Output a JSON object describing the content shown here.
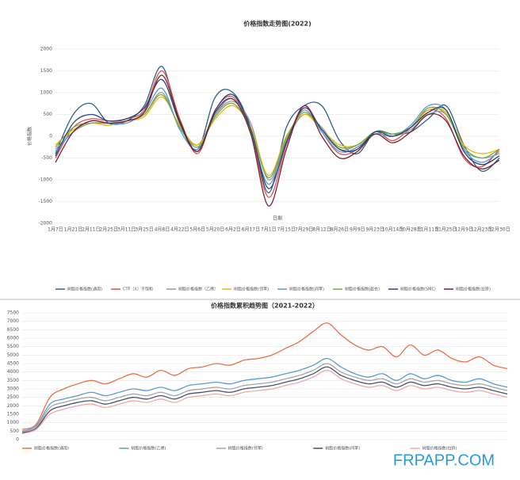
{
  "chart_data": [
    {
      "type": "line",
      "title": "价格指数走势图(2022)",
      "x_label": "日期",
      "y_label": "价格指数",
      "categories": [
        "1月7日",
        "1月21日",
        "2月11日",
        "2月25日",
        "3月11日",
        "3月25日",
        "4月8日",
        "4月22日",
        "5月6日",
        "5月20日",
        "6月2日",
        "6月17日",
        "7月1日",
        "7月15日",
        "7月29日",
        "8月12日",
        "8月26日",
        "9月9日",
        "9月23日",
        "10月14日",
        "10月28日",
        "11月11日",
        "11月25日",
        "12月9日",
        "12月23日",
        "12月30日"
      ],
      "ylim": [
        -2000,
        2000
      ],
      "yticks": [
        -2000,
        -1500,
        -1000,
        -500,
        0,
        500,
        1000,
        1500,
        2000
      ],
      "grid": true,
      "legend": "bottom",
      "series": [
        {
          "name": "树脂价格指数(通用)",
          "color": "#2f5f8a",
          "values": [
            -400,
            500,
            750,
            300,
            350,
            700,
            1600,
            300,
            -300,
            900,
            1000,
            200,
            -1300,
            200,
            700,
            700,
            -100,
            -400,
            100,
            50,
            100,
            400,
            700,
            -200,
            -800,
            -500
          ]
        },
        {
          "name": "CTF（X）不饱和",
          "color": "#d9534f",
          "values": [
            -500,
            200,
            400,
            350,
            400,
            600,
            1500,
            400,
            -400,
            600,
            900,
            100,
            -1400,
            -200,
            700,
            100,
            -400,
            -300,
            100,
            -100,
            200,
            600,
            400,
            -500,
            -700,
            -300
          ]
        },
        {
          "name": "树脂价格指数（乙烯）",
          "color": "#999999",
          "values": [
            -300,
            100,
            300,
            300,
            350,
            500,
            1000,
            200,
            -200,
            500,
            800,
            300,
            -1000,
            -100,
            500,
            200,
            -300,
            -200,
            50,
            0,
            150,
            500,
            500,
            -300,
            -500,
            -400
          ]
        },
        {
          "name": "树脂价格指数(邻苯)",
          "color": "#f0b400",
          "values": [
            -200,
            150,
            300,
            250,
            350,
            450,
            900,
            250,
            -200,
            400,
            700,
            200,
            -900,
            0,
            500,
            150,
            -200,
            -200,
            100,
            50,
            200,
            600,
            550,
            -200,
            -400,
            -300
          ]
        },
        {
          "name": "树脂价格指数(间苯)",
          "color": "#5b9bd5",
          "values": [
            -350,
            100,
            350,
            300,
            300,
            550,
            1100,
            150,
            -300,
            500,
            850,
            100,
            -1100,
            -100,
            600,
            100,
            -350,
            -250,
            50,
            0,
            250,
            700,
            600,
            -300,
            -600,
            -350
          ]
        },
        {
          "name": "树脂价格指数(胶衣)",
          "color": "#70ad47",
          "values": [
            -250,
            200,
            300,
            300,
            350,
            500,
            950,
            200,
            -250,
            450,
            750,
            150,
            -950,
            -50,
            550,
            150,
            -250,
            -200,
            100,
            50,
            200,
            650,
            500,
            -250,
            -500,
            -300
          ]
        },
        {
          "name": "树脂价格指数(SMC)",
          "color": "#264478",
          "values": [
            -450,
            300,
            500,
            350,
            400,
            650,
            1300,
            300,
            -350,
            600,
            950,
            150,
            -1200,
            -150,
            650,
            150,
            -300,
            -300,
            100,
            0,
            200,
            550,
            600,
            -350,
            -650,
            -450
          ]
        },
        {
          "name": "树脂价格指数(拉挤)",
          "color": "#7b1f2e",
          "values": [
            -600,
            100,
            350,
            300,
            350,
            550,
            1400,
            350,
            -350,
            550,
            850,
            50,
            -1600,
            -300,
            700,
            0,
            -500,
            -350,
            50,
            -150,
            100,
            500,
            350,
            -450,
            -750,
            -550
          ]
        }
      ]
    },
    {
      "type": "line",
      "title": "价格指数累积趋势图（2021-2022）",
      "categories": [
        null,
        null,
        null,
        null,
        null,
        null,
        null,
        null,
        null,
        null,
        null,
        null,
        null,
        null,
        null,
        null,
        null,
        null,
        null,
        null,
        null,
        null,
        null,
        null,
        null,
        null,
        null,
        null,
        null,
        null,
        null,
        null,
        null,
        null,
        null,
        null
      ],
      "ylim": [
        0,
        7500
      ],
      "yticks": [
        0,
        500,
        1000,
        1500,
        2000,
        2500,
        3000,
        3500,
        4000,
        4500,
        5000,
        5500,
        6000,
        6500,
        7000,
        7500
      ],
      "grid": true,
      "legend": "bottom",
      "series": [
        {
          "name": "树脂价格指数(通用)",
          "color": "#e8704a",
          "values": [
            600,
            900,
            2500,
            3000,
            3300,
            3500,
            3300,
            3600,
            3900,
            3700,
            4100,
            3800,
            4200,
            4300,
            4500,
            4400,
            4700,
            4800,
            5000,
            5400,
            5800,
            6400,
            6900,
            6200,
            5600,
            5300,
            5500,
            4900,
            5600,
            5000,
            5300,
            4800,
            4600,
            4900,
            4400,
            4200
          ]
        },
        {
          "name": "树脂价格指数(乙烯)",
          "color": "#5b9bd5",
          "values": [
            500,
            800,
            2100,
            2400,
            2600,
            2800,
            2600,
            2800,
            3000,
            2900,
            3100,
            2900,
            3200,
            3300,
            3400,
            3300,
            3500,
            3600,
            3700,
            3900,
            4100,
            4400,
            4800,
            4300,
            3900,
            3700,
            3900,
            3500,
            3900,
            3600,
            3800,
            3500,
            3400,
            3600,
            3300,
            3100
          ]
        },
        {
          "name": "树脂价格指数(邻苯)",
          "color": "#a5a5a5",
          "values": [
            450,
            700,
            1900,
            2200,
            2400,
            2500,
            2300,
            2500,
            2700,
            2600,
            2800,
            2600,
            2900,
            3000,
            3100,
            3000,
            3200,
            3300,
            3400,
            3600,
            3800,
            4100,
            4500,
            4000,
            3700,
            3500,
            3600,
            3300,
            3600,
            3400,
            3500,
            3300,
            3200,
            3300,
            3100,
            2900
          ]
        },
        {
          "name": "树脂价格指数(间苯)",
          "color": "#44546a",
          "values": [
            400,
            650,
            1700,
            2000,
            2200,
            2300,
            2100,
            2300,
            2500,
            2400,
            2600,
            2400,
            2700,
            2800,
            2900,
            2800,
            3000,
            3100,
            3200,
            3400,
            3600,
            3900,
            4300,
            3800,
            3500,
            3300,
            3400,
            3100,
            3400,
            3200,
            3300,
            3100,
            3000,
            3100,
            2900,
            2700
          ]
        },
        {
          "name": "树脂价格指数(拉挤)",
          "color": "#f4a6a6",
          "values": [
            350,
            600,
            1500,
            1800,
            2000,
            2100,
            1900,
            2100,
            2300,
            2200,
            2400,
            2200,
            2500,
            2600,
            2700,
            2600,
            2800,
            2900,
            3000,
            3200,
            3400,
            3700,
            4100,
            3600,
            3300,
            3100,
            3200,
            2900,
            3200,
            3000,
            3100,
            2900,
            2800,
            2900,
            2700,
            2500
          ]
        }
      ]
    }
  ],
  "watermark": "FRPAPP.COM"
}
